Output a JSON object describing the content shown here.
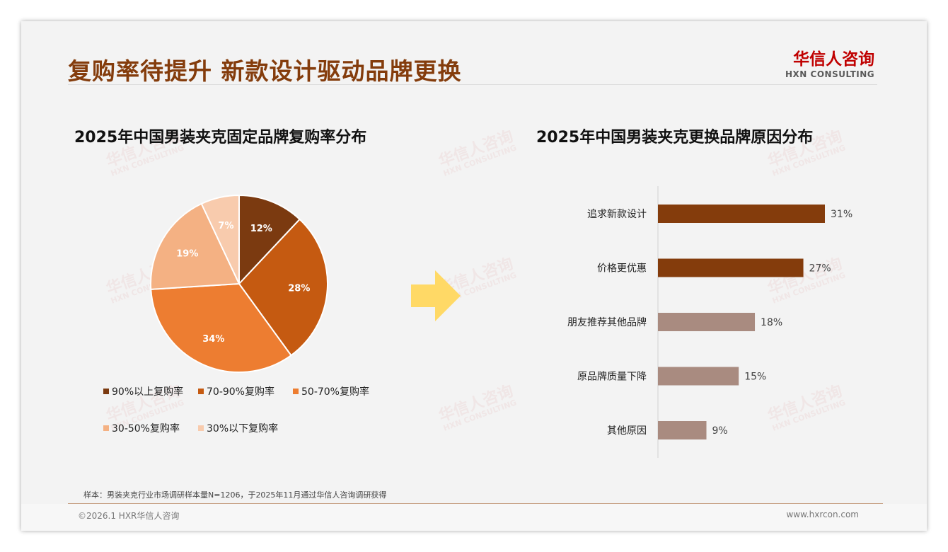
{
  "header": {
    "title": "复购率待提升 新款设计驱动品牌更换",
    "logo_cn": "华信人咨询",
    "logo_en": "HXN CONSULTING"
  },
  "colors": {
    "accent": "#843c0c"
  },
  "chart_data": [
    {
      "type": "pie",
      "title": "2025年中国男装夹克固定品牌复购率分布",
      "categories": [
        "90%以上复购率",
        "70-90%复购率",
        "50-70%复购率",
        "30-50%复购率",
        "30%以下复购率"
      ],
      "values": [
        12,
        28,
        34,
        19,
        7
      ],
      "labels": [
        "12%",
        "28%",
        "34%",
        "19%",
        "7%"
      ],
      "colors": [
        "#7b3a10",
        "#c55a11",
        "#ed7d31",
        "#f4b183",
        "#f8cbad"
      ],
      "legend": "bottom"
    },
    {
      "type": "bar",
      "orientation": "horizontal",
      "title": "2025年中国男装夹克更换品牌原因分布",
      "categories": [
        "追求新款设计",
        "价格更优惠",
        "朋友推荐其他品牌",
        "原品牌质量下降",
        "其他原因"
      ],
      "values": [
        31,
        27,
        18,
        15,
        9
      ],
      "labels": [
        "31%",
        "27%",
        "18%",
        "15%",
        "9%"
      ],
      "colors": [
        "#843c0c",
        "#843c0c",
        "#a98b80",
        "#a98b80",
        "#a98b80"
      ],
      "xlim": [
        0,
        35
      ]
    }
  ],
  "footer": {
    "note": "样本：男装夹克行业市场调研样本量N=1206，于2025年11月通过华信人咨询调研获得",
    "copyright": "©2026.1 HXR华信人咨询",
    "website": "www.hxrcon.com"
  }
}
